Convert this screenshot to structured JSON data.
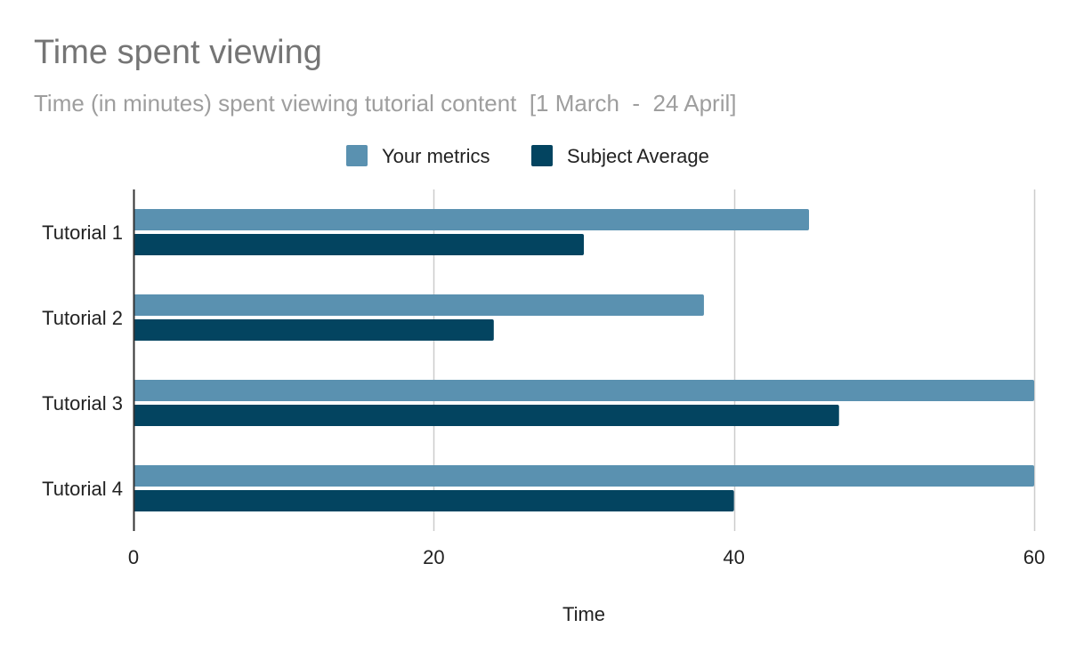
{
  "chart_data": {
    "type": "bar",
    "orientation": "horizontal",
    "title": "Time spent viewing",
    "subtitle": "Time (in minutes) spent viewing tutorial content  [1 March  -  24 April]",
    "xlabel": "Time",
    "ylabel": "",
    "categories": [
      "Tutorial 1",
      "Tutorial 2",
      "Tutorial 3",
      "Tutorial 4"
    ],
    "series": [
      {
        "name": "Your metrics",
        "values": [
          45,
          38,
          60,
          60
        ],
        "color": "#5a91b0"
      },
      {
        "name": "Subject Average",
        "values": [
          30,
          24,
          47,
          40
        ],
        "color": "#034460"
      }
    ],
    "xlim": [
      0,
      60
    ],
    "xticks": [
      0,
      20,
      40,
      60
    ],
    "grid": true,
    "legend_position": "top-center"
  }
}
